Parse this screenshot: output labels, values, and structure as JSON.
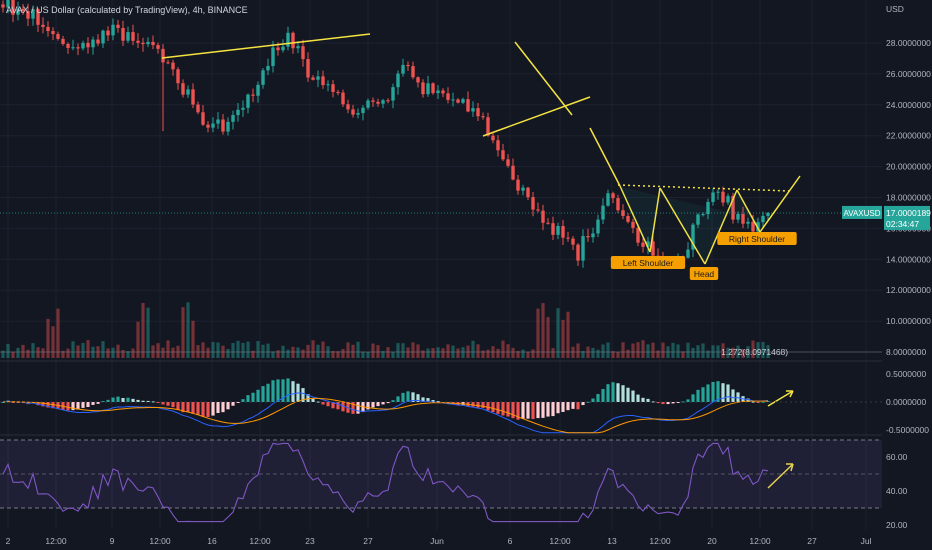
{
  "header": {
    "title": "AVAX / US Dollar (calculated by TradingView), 4h, BINANCE"
  },
  "price_axis": {
    "currency": "USD",
    "ticks": [
      "28.0000000",
      "26.0000000",
      "24.0000000",
      "22.0000000",
      "20.0000000",
      "18.0000000",
      "16.0000000",
      "14.0000000",
      "12.0000000",
      "10.0000000",
      "8.0000000"
    ],
    "tick_values": [
      28,
      26,
      24,
      22,
      20,
      18,
      16,
      14,
      12,
      10,
      8
    ],
    "last_price_label": "AVAXUSD",
    "last_price": "17.0000189",
    "countdown": "02:34:47"
  },
  "macd_axis": {
    "ticks": [
      "0.5000000",
      "0.0000000",
      "-0.5000000"
    ],
    "tick_values": [
      0.5,
      0,
      -0.5
    ]
  },
  "rsi_axis": {
    "ticks": [
      "60.00",
      "40.00",
      "20.00"
    ],
    "tick_values": [
      60,
      40,
      20
    ],
    "upper_band": 70,
    "lower_band": 30
  },
  "time_axis": {
    "labels": [
      "2",
      "12:00",
      "9",
      "12:00",
      "16",
      "12:00",
      "23",
      "27",
      "Jun",
      "6",
      "12:00",
      "13",
      "12:00",
      "20",
      "12:00",
      "27",
      "Jul"
    ]
  },
  "annotations": {
    "fib_label": "1.272(8.0971468)",
    "left_shoulder": "Left Shoulder",
    "head": "Head",
    "right_shoulder": "Right Shoulder"
  },
  "colors": {
    "background": "#131722",
    "bull": "#26a69a",
    "bear": "#ef5350",
    "drawing": "#f5e342",
    "label_bg": "#f59f00",
    "rsi_line": "#7e57c2",
    "macd_line": "#2962ff",
    "signal_line": "#ff9800"
  },
  "chart_data": [
    {
      "type": "candlestick",
      "title": "AVAX / US Dollar (calculated by TradingView), 4h, BINANCE",
      "ylim": [
        7,
        30
      ],
      "close_path": [
        [
          0,
          30.5
        ],
        [
          10,
          29.0
        ],
        [
          13,
          27.5
        ],
        [
          18,
          28.2
        ],
        [
          22,
          28.6
        ],
        [
          26,
          28.4
        ],
        [
          30,
          27.8
        ],
        [
          34,
          26.2
        ],
        [
          37,
          24.5
        ],
        [
          40,
          22.8
        ],
        [
          45,
          22.6
        ],
        [
          48,
          24.0
        ],
        [
          52,
          26.5
        ],
        [
          55,
          27.5
        ],
        [
          57,
          28.4
        ],
        [
          62,
          25.8
        ],
        [
          66,
          24.6
        ],
        [
          70,
          23.2
        ],
        [
          74,
          24.4
        ],
        [
          77,
          24.1
        ],
        [
          80,
          27.0
        ],
        [
          83,
          25.0
        ],
        [
          86,
          24.8
        ],
        [
          89,
          24.4
        ],
        [
          92,
          24.2
        ],
        [
          96,
          22.6
        ],
        [
          100,
          20.5
        ],
        [
          104,
          18.2
        ],
        [
          108,
          16.8
        ],
        [
          112,
          15.8
        ],
        [
          115,
          14.6
        ],
        [
          118,
          16.0
        ],
        [
          121,
          18.4
        ],
        [
          124,
          16.8
        ],
        [
          127,
          15.4
        ],
        [
          130,
          14.4
        ],
        [
          133,
          13.9
        ],
        [
          136,
          14.6
        ],
        [
          139,
          16.5
        ],
        [
          142,
          18.1
        ],
        [
          145,
          17.4
        ],
        [
          148,
          16.4
        ],
        [
          150,
          16.1
        ],
        [
          153,
          17.0
        ]
      ],
      "last_price": 17.0000189,
      "volume_spike_at": [
        10,
        28,
        37,
        108,
        112
      ],
      "fib_extension": {
        "label": "1.272",
        "value": 8.0971468
      }
    },
    {
      "type": "histogram",
      "name": "MACD",
      "ylim": [
        -0.6,
        0.7
      ]
    },
    {
      "type": "line",
      "name": "RSI",
      "ylim": [
        18,
        70
      ]
    }
  ]
}
